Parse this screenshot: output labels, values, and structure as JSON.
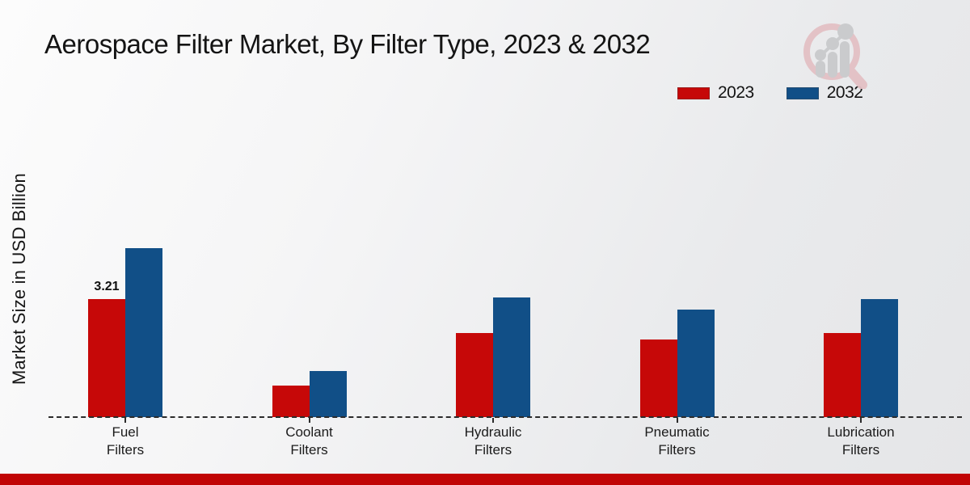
{
  "title": "Aerospace Filter Market, By Filter Type, 2023 & 2032",
  "ylabel": "Market Size in USD Billion",
  "legend": {
    "items": [
      {
        "label": "2023",
        "color": "#c60808"
      },
      {
        "label": "2032",
        "color": "#114f87"
      }
    ],
    "position": "top-right"
  },
  "watermark": {
    "name": "market-research-future-logo"
  },
  "footer_color": "#c10505",
  "chart_data": {
    "type": "bar",
    "title": "Aerospace Filter Market, By Filter Type, 2023 & 2032",
    "ylabel": "Market Size in USD Billion",
    "xlabel": "",
    "categories": [
      "Fuel Filters",
      "Coolant Filters",
      "Hydraulic Filters",
      "Pneumatic Filters",
      "Lubrication Filters"
    ],
    "series": [
      {
        "name": "2023",
        "color": "#c60808",
        "values": [
          3.21,
          0.86,
          2.28,
          2.11,
          2.29
        ]
      },
      {
        "name": "2032",
        "color": "#114f87",
        "values": [
          4.6,
          1.25,
          3.25,
          2.92,
          3.2
        ]
      }
    ],
    "data_labels": [
      {
        "series": "2023",
        "category": "Fuel Filters",
        "text": "3.21"
      }
    ],
    "ylim": [
      0,
      5
    ],
    "grid": false,
    "baseline_style": "dashed",
    "legend_position": "top-right"
  }
}
